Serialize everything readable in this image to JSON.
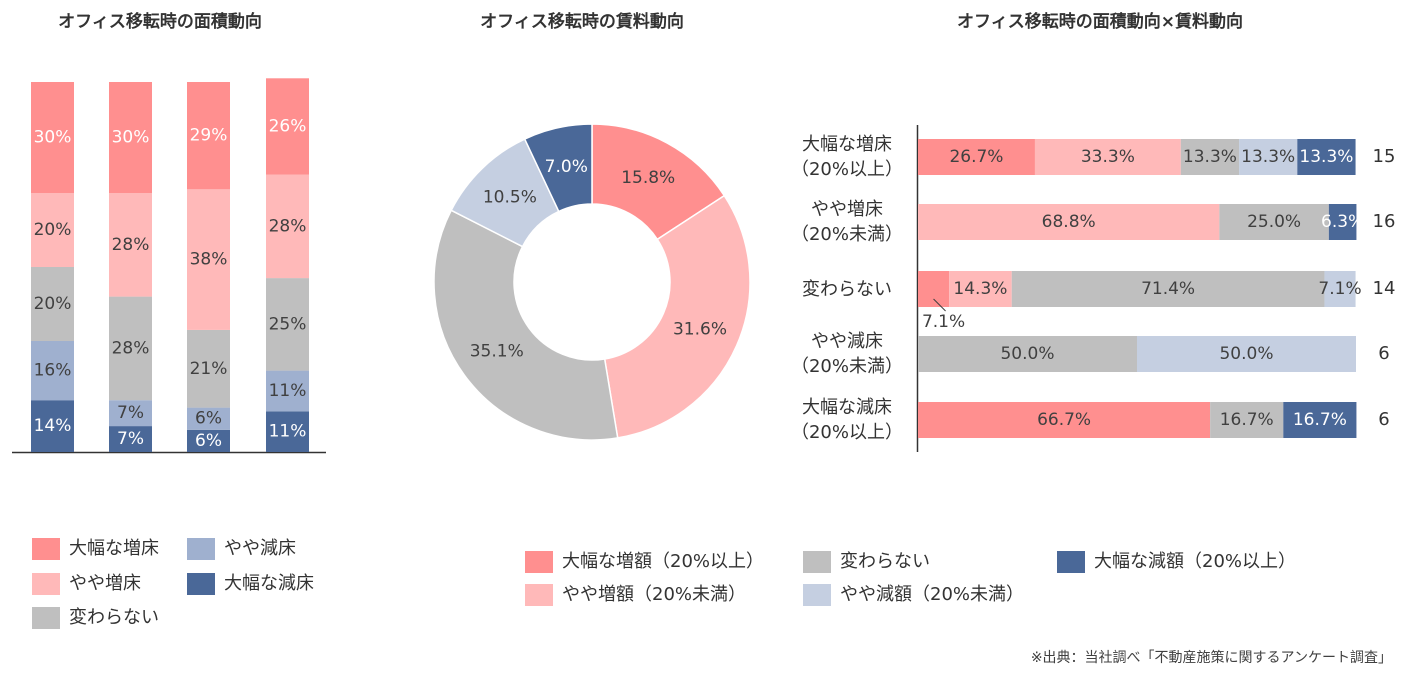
{
  "chart_data": [
    {
      "type": "stacked-bar",
      "title": "オフィス移転時の面積動向",
      "categories": [
        null,
        null,
        null,
        null
      ],
      "ylim": [
        0,
        100
      ],
      "series": [
        {
          "name": "大幅な増床",
          "color": "#ff8f8f",
          "values": [
            30,
            30,
            29,
            26
          ],
          "value_labels": [
            "30%",
            "30%",
            "29%",
            "26%"
          ]
        },
        {
          "name": "やや増床",
          "color": "#ffb9b9",
          "values": [
            20,
            28,
            38,
            28
          ],
          "value_labels": [
            "20%",
            "28%",
            "38%",
            "28%"
          ]
        },
        {
          "name": "変わらない",
          "color": "#bfbfbf",
          "values": [
            20,
            28,
            21,
            25
          ],
          "value_labels": [
            "20%",
            "28%",
            "21%",
            "25%"
          ]
        },
        {
          "name": "やや減床",
          "color": "#9fb0cf",
          "values": [
            16,
            7,
            6,
            11
          ],
          "value_labels": [
            "16%",
            "7%",
            "6%",
            "11%"
          ]
        },
        {
          "name": "大幅な減床",
          "color": "#4a6898",
          "values": [
            14,
            7,
            6,
            11
          ],
          "value_labels": [
            "14%",
            "7%",
            "6%",
            "11%"
          ]
        }
      ]
    },
    {
      "type": "donut",
      "title": "オフィス移転時の賃料動向",
      "categories": [
        "大幅な増額（20%以上）",
        "やや増額（20%未満）",
        "変わらない",
        "やや減額（20%未満）",
        "大幅な減額（20%以上）"
      ],
      "values": [
        15.8,
        31.6,
        35.1,
        10.5,
        7.0
      ],
      "value_labels": [
        "15.8%",
        "31.6%",
        "35.1%",
        "10.5%",
        "7.0%"
      ],
      "colors": [
        "#ff8f8f",
        "#ffb9b9",
        "#bfbfbf",
        "#c5cfe1",
        "#4a6898"
      ]
    },
    {
      "type": "stacked-barh",
      "title": "オフィス移転時の面積動向×賃料動向",
      "categories": [
        "大幅な増床\n（20%以上）",
        "やや増床\n（20%未満）",
        "変わらない",
        "やや減床\n（20%未満）",
        "大幅な減床\n（20%以上）"
      ],
      "xlim": [
        0,
        100
      ],
      "counts": [
        15,
        16,
        14,
        6,
        6
      ],
      "series": [
        {
          "color": "#ff8f8f",
          "values": [
            26.7,
            null,
            7.1,
            null,
            66.7
          ],
          "value_labels": [
            "26.7%",
            null,
            "7.1%",
            null,
            "66.7%"
          ]
        },
        {
          "color": "#ffb9b9",
          "values": [
            33.3,
            68.8,
            14.3,
            null,
            null
          ],
          "value_labels": [
            "33.3%",
            "68.8%",
            "14.3%",
            null,
            null
          ]
        },
        {
          "color": "#bfbfbf",
          "values": [
            13.3,
            25.0,
            71.4,
            50.0,
            16.7
          ],
          "value_labels": [
            "13.3%",
            "25.0%",
            "71.4%",
            "50.0%",
            "16.7%"
          ]
        },
        {
          "color": "#c5cfe1",
          "values": [
            13.3,
            null,
            7.1,
            50.0,
            null
          ],
          "value_labels": [
            "13.3%",
            null,
            "7.1%",
            "50.0%",
            null
          ]
        },
        {
          "color": "#4a6898",
          "values": [
            13.3,
            6.3,
            null,
            null,
            16.7
          ],
          "value_labels": [
            "13.3%",
            "6.3%",
            null,
            null,
            "16.7%"
          ]
        }
      ]
    }
  ],
  "source": "※出典：当社調べ「不動産施策に関するアンケート調査」"
}
